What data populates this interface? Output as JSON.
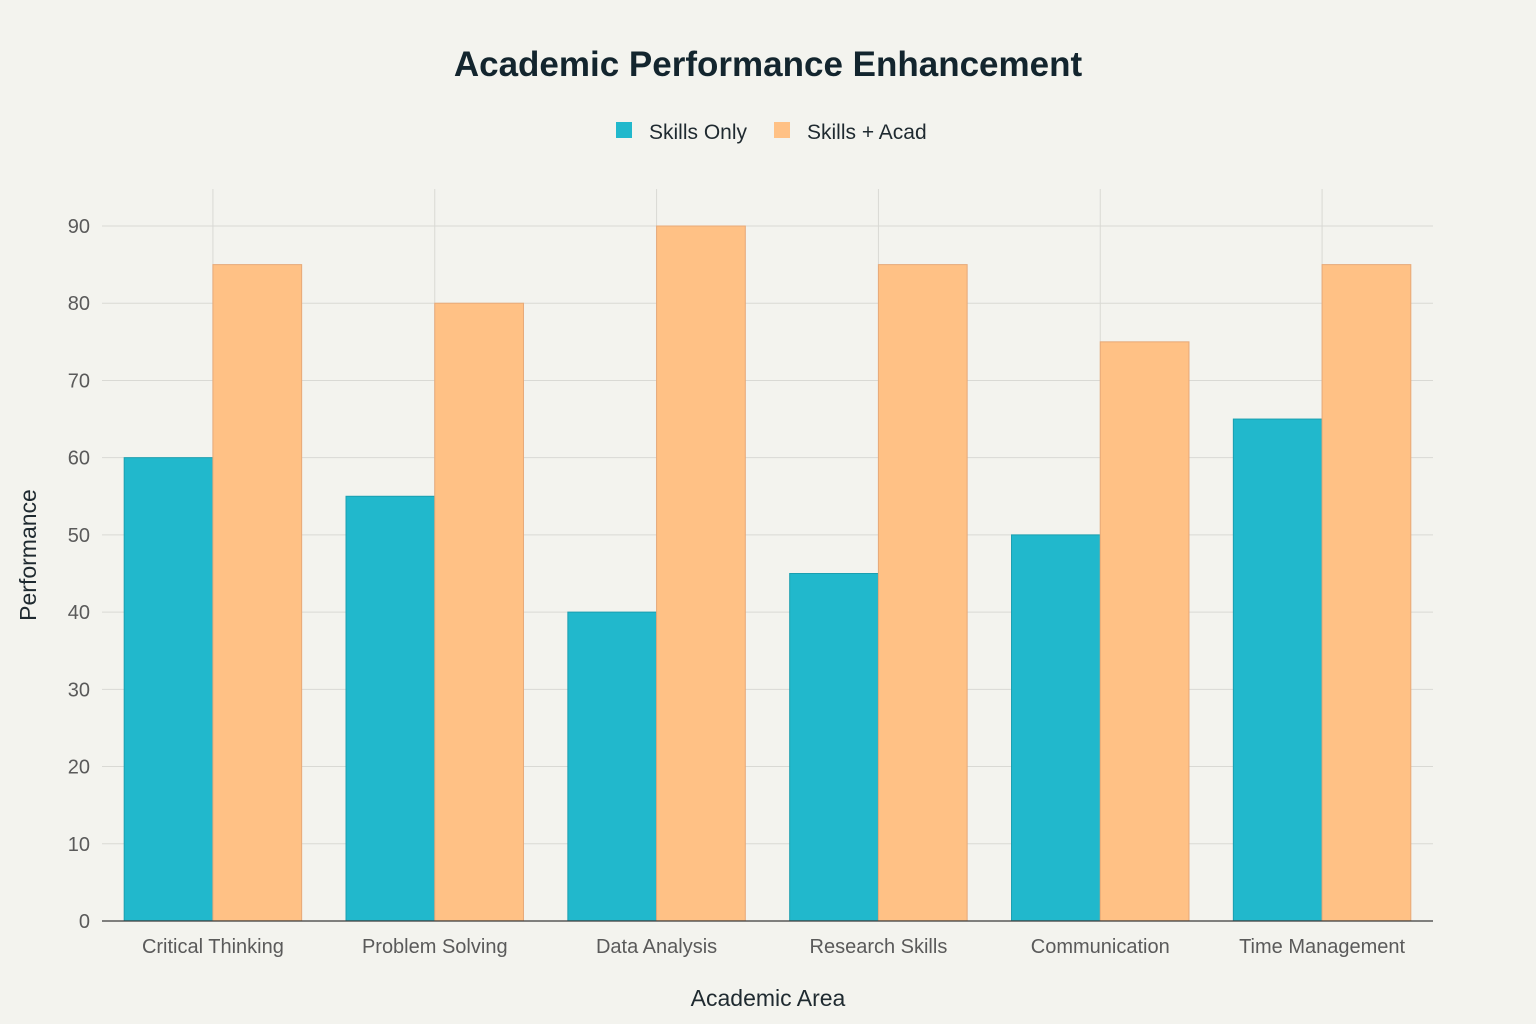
{
  "chart_data": {
    "type": "bar",
    "title": "Academic Performance Enhancement",
    "xlabel": "Academic Area",
    "ylabel": "Performance",
    "categories": [
      "Critical Thinking",
      "Problem Solving",
      "Data Analysis",
      "Research Skills",
      "Communication",
      "Time Management"
    ],
    "series": [
      {
        "name": "Skills Only",
        "values": [
          60,
          55,
          40,
          45,
          50,
          65
        ],
        "color": "#21b8cc"
      },
      {
        "name": "Skills + Acad",
        "values": [
          85,
          80,
          90,
          85,
          75,
          85
        ],
        "color": "#ffc185"
      }
    ],
    "ylim": [
      0,
      90
    ],
    "yticks": [
      0,
      10,
      20,
      30,
      40,
      50,
      60,
      70,
      80,
      90
    ],
    "grid": true,
    "legend": "top-center"
  }
}
